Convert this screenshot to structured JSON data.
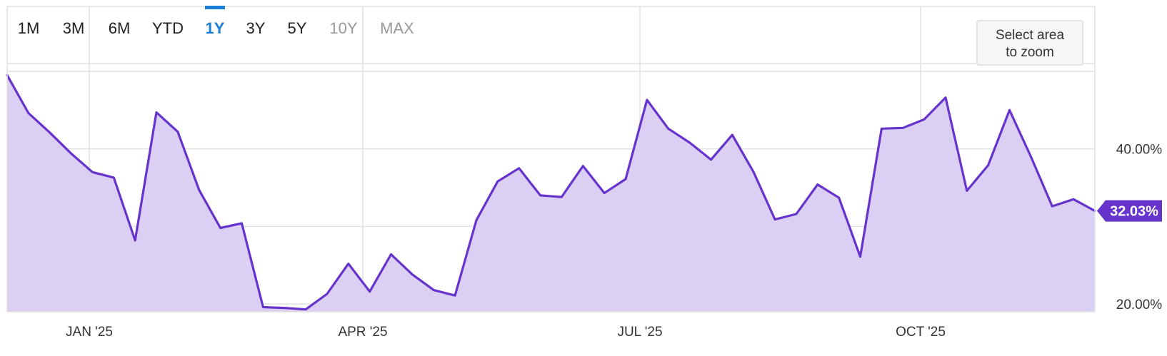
{
  "range_selector": {
    "buttons": [
      {
        "label": "1M",
        "state": "enabled"
      },
      {
        "label": "3M",
        "state": "enabled"
      },
      {
        "label": "6M",
        "state": "enabled"
      },
      {
        "label": "YTD",
        "state": "enabled"
      },
      {
        "label": "1Y",
        "state": "selected"
      },
      {
        "label": "3Y",
        "state": "enabled"
      },
      {
        "label": "5Y",
        "state": "enabled"
      },
      {
        "label": "10Y",
        "state": "disabled"
      },
      {
        "label": "MAX",
        "state": "disabled"
      }
    ]
  },
  "zoom_hint": {
    "line1": "Select area",
    "line2": "to zoom"
  },
  "colors": {
    "line": "#6633cc",
    "fill": "#d9ccf2",
    "accent": "#1a7fd6",
    "text": "#222222",
    "disabled": "#9a9a9a",
    "grid": "#e1e1e1",
    "badge": "#6633cc"
  },
  "chart_data": {
    "type": "area",
    "x_tick_labels": [
      "JAN '25",
      "APR '25",
      "JUL '25",
      "OCT '25"
    ],
    "y_tick_labels": [
      "20.00%",
      "40.00%"
    ],
    "y_ticks": [
      20,
      30,
      40,
      50
    ],
    "ylim": [
      19.0,
      51.0
    ],
    "last_value_label": "32.03%",
    "grid": true,
    "series": [
      {
        "values": [
          49.5,
          44.6,
          42.1,
          39.4,
          37.0,
          36.3,
          28.2,
          44.7,
          42.2,
          34.7,
          29.8,
          30.4,
          19.6,
          19.5,
          19.3,
          21.3,
          25.2,
          21.6,
          26.4,
          23.8,
          21.8,
          21.1,
          30.8,
          35.8,
          37.5,
          34.0,
          33.8,
          37.8,
          34.3,
          36.1,
          46.3,
          42.6,
          40.8,
          38.6,
          41.8,
          37.0,
          30.9,
          31.6,
          35.4,
          33.7,
          26.1,
          42.6,
          42.7,
          43.8,
          46.6,
          34.6,
          37.9,
          45.0,
          39.0,
          32.6,
          33.5,
          32.0
        ]
      }
    ]
  }
}
